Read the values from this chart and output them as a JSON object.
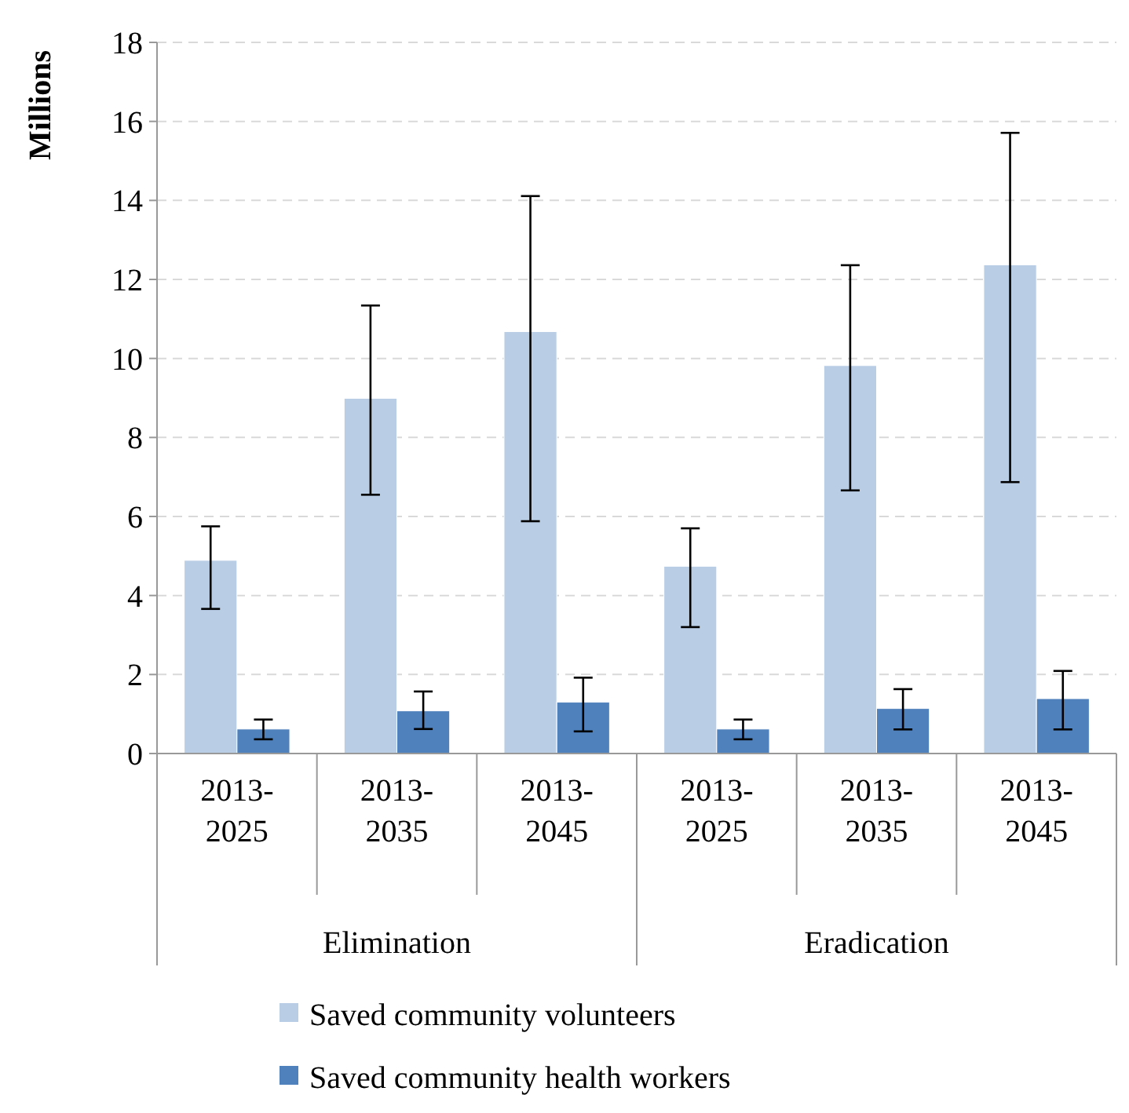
{
  "chart_data": {
    "type": "bar",
    "ylabel": "Millions",
    "categories": [
      "2013-2025",
      "2013-2035",
      "2013-2045",
      "2013-2025",
      "2013-2035",
      "2013-2045"
    ],
    "series": [
      {
        "name": "Saved community volunteers",
        "color": "#b9cde5",
        "values": [
          4.89,
          8.99,
          10.68,
          4.74,
          9.82,
          12.37
        ],
        "errors": [
          [
            3.66,
            5.75
          ],
          [
            6.55,
            11.34
          ],
          [
            5.88,
            14.11
          ],
          [
            3.2,
            5.7
          ],
          [
            6.66,
            12.36
          ],
          [
            6.87,
            15.71
          ]
        ]
      },
      {
        "name": "Saved community health workers",
        "color": "#4f81bd",
        "values": [
          0.62,
          1.08,
          1.3,
          0.62,
          1.14,
          1.39
        ],
        "errors": [
          [
            0.36,
            0.86
          ],
          [
            0.62,
            1.57
          ],
          [
            0.56,
            1.92
          ],
          [
            0.36,
            0.86
          ],
          [
            0.61,
            1.63
          ],
          [
            0.61,
            2.09
          ]
        ]
      }
    ],
    "annotations": [
      "Elimination",
      "Eradication"
    ],
    "ylim": [
      0,
      18
    ],
    "yticks": [
      0,
      2,
      4,
      6,
      8,
      10,
      12,
      14,
      16,
      18
    ],
    "grid": "y",
    "legend": "bottom"
  }
}
